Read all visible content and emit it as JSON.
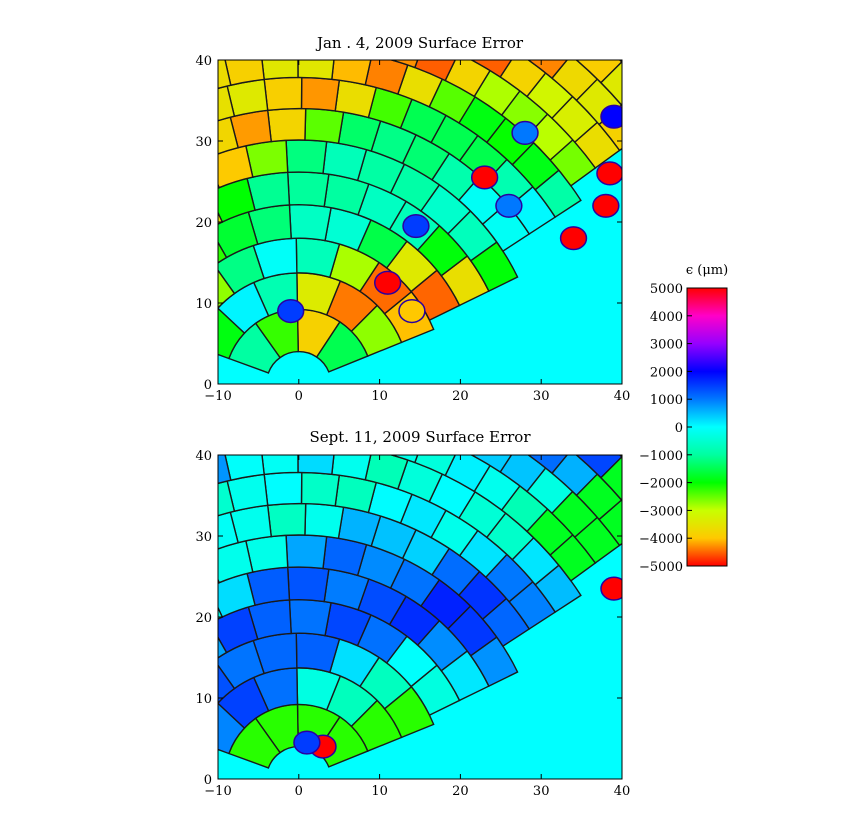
{
  "chart_data": [
    {
      "type": "heatmap",
      "title": "Jan . 4, 2009 Surface Error",
      "xlim": [
        -10,
        40
      ],
      "ylim": [
        0,
        40
      ],
      "xticks": [
        "-10",
        "0",
        "10",
        "20",
        "30",
        "40"
      ],
      "yticks": [
        "0",
        "10",
        "20",
        "30",
        "40"
      ],
      "background_color": "#00ffff",
      "grid": "radial panel segmentation lines",
      "hotspots": [
        {
          "x": 23,
          "y": 25.5,
          "value": 5000
        },
        {
          "x": 11,
          "y": 12.5,
          "value": 5000
        },
        {
          "x": 14.5,
          "y": 19.5,
          "value": 1500
        },
        {
          "x": 26,
          "y": 22,
          "value": 1000
        },
        {
          "x": 38.5,
          "y": 26,
          "value": 5000
        },
        {
          "x": 38,
          "y": 22,
          "value": 5000
        },
        {
          "x": 34,
          "y": 18,
          "value": 5000
        },
        {
          "x": 39,
          "y": 33,
          "value": 2000
        },
        {
          "x": 28,
          "y": 31,
          "value": 1000
        },
        {
          "x": 14,
          "y": 9,
          "value": -4000
        },
        {
          "x": -1,
          "y": 9,
          "value": 1500
        }
      ]
    },
    {
      "type": "heatmap",
      "title": "Sept. 11, 2009 Surface Error",
      "xlim": [
        -10,
        40
      ],
      "ylim": [
        0,
        40
      ],
      "xticks": [
        "-10",
        "0",
        "10",
        "20",
        "30",
        "40"
      ],
      "yticks": [
        "0",
        "10",
        "20",
        "30",
        "40"
      ],
      "background_color": "#00ffff",
      "grid": "radial panel segmentation lines",
      "hotspots": [
        {
          "x": 39,
          "y": 23.5,
          "value": 5000
        },
        {
          "x": 3,
          "y": 4,
          "value": 5000
        },
        {
          "x": 1,
          "y": 4.5,
          "value": 1500
        }
      ]
    }
  ],
  "colorbar": {
    "label": "ϵ (μm)",
    "ticks": [
      "5000",
      "4000",
      "3000",
      "2000",
      "1000",
      "0",
      "−1000",
      "−2000",
      "−3000",
      "−4000",
      "−5000"
    ],
    "range": [
      -5000,
      5000
    ],
    "colors": [
      "#ff0000",
      "#ffa000",
      "#ffff00",
      "#00ff00",
      "#00ffff",
      "#0060ff",
      "#0000ff",
      "#a000ff",
      "#ff00ff",
      "#ff0060",
      "#ff0000"
    ]
  }
}
